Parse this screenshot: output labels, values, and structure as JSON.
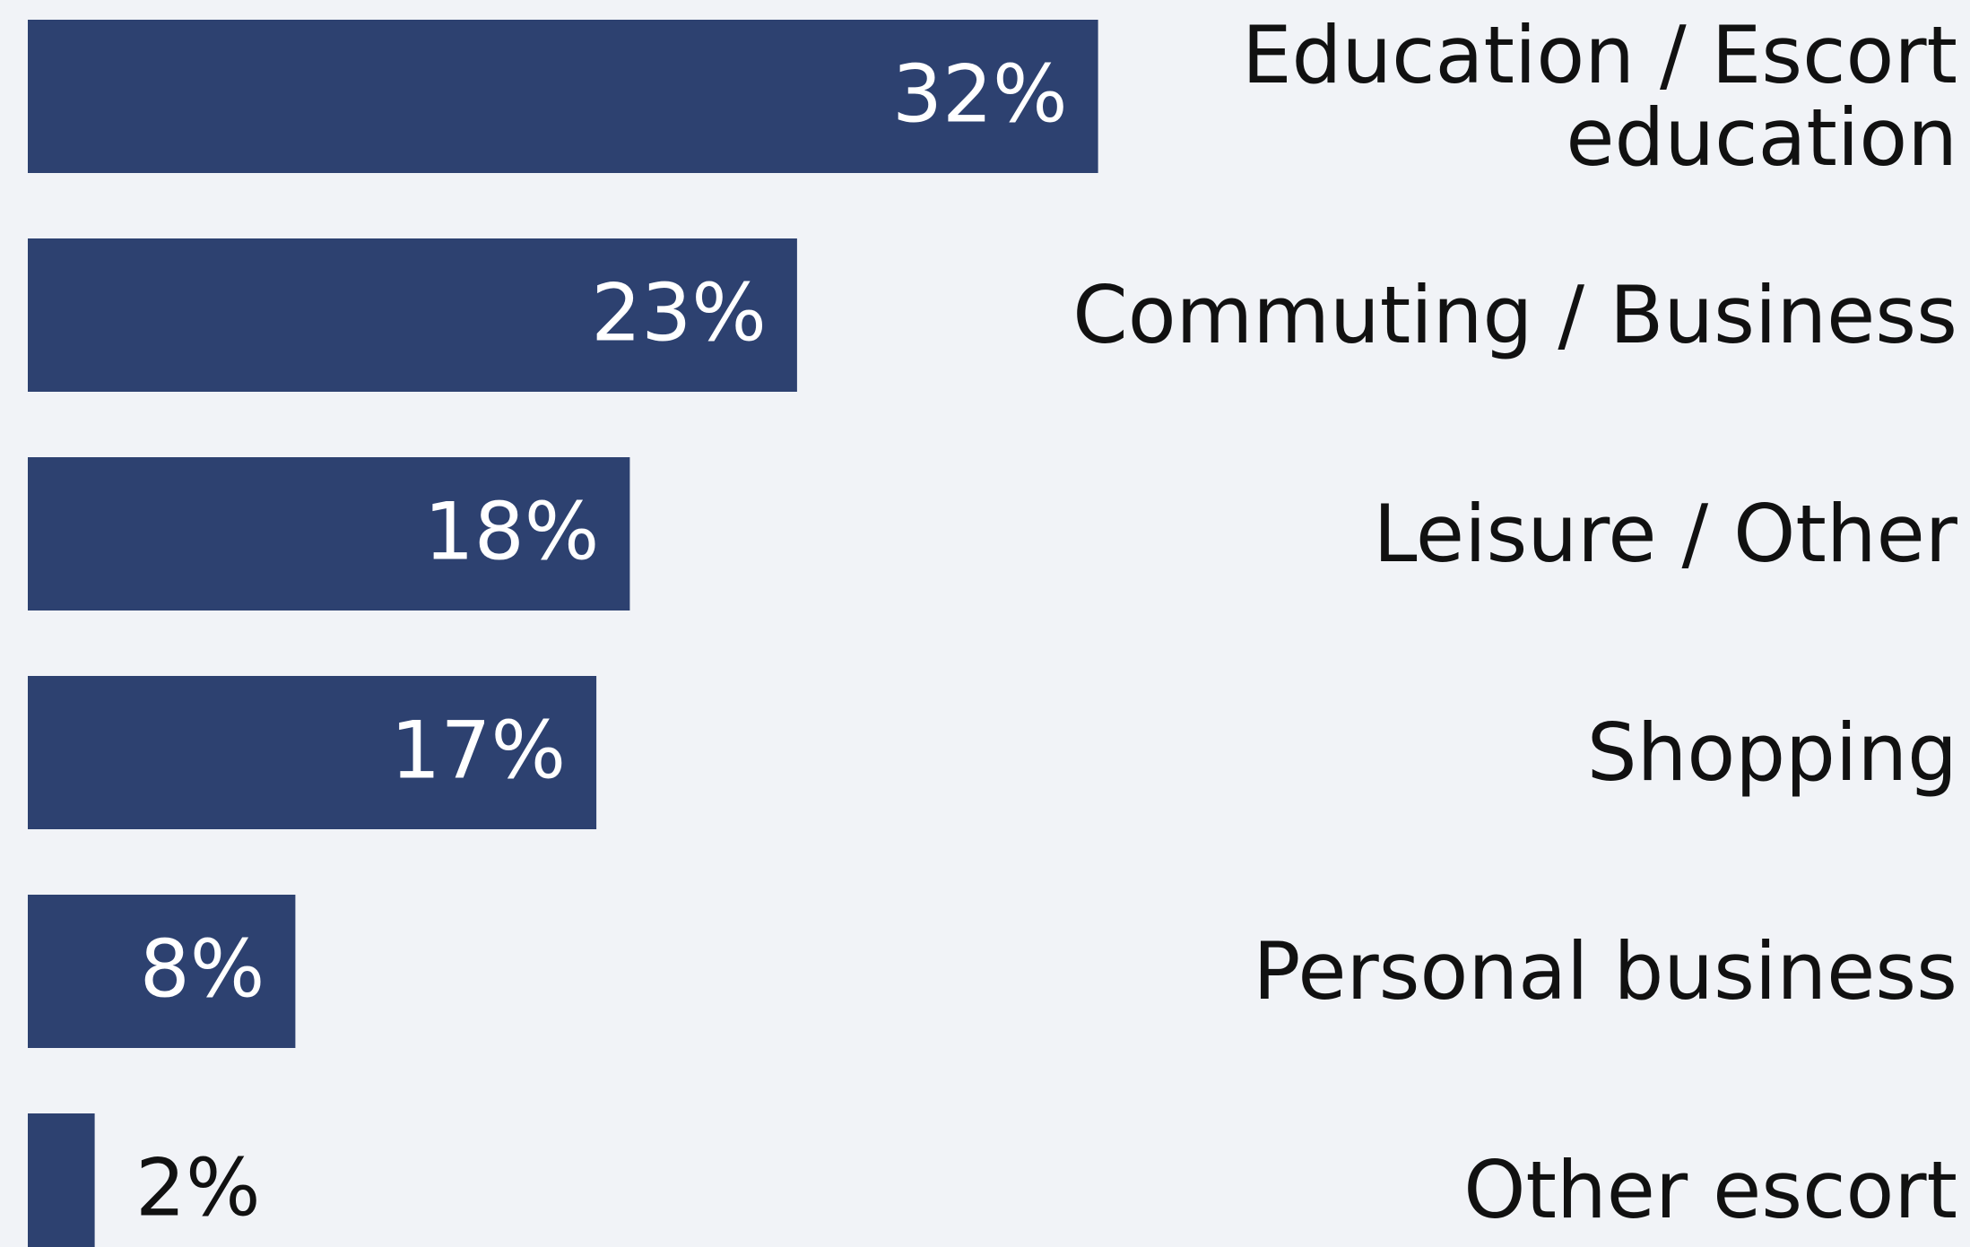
{
  "chart_data": {
    "type": "barh",
    "categories": [
      "Education / Escort education",
      "Commuting / Business",
      "Leisure / Other",
      "Shopping",
      "Personal business",
      "Other escort"
    ],
    "values": [
      32,
      23,
      18,
      17,
      8,
      2
    ],
    "value_labels": [
      "32%",
      "23%",
      "18%",
      "17%",
      "8%",
      "2%"
    ],
    "color": "#2d4170"
  }
}
